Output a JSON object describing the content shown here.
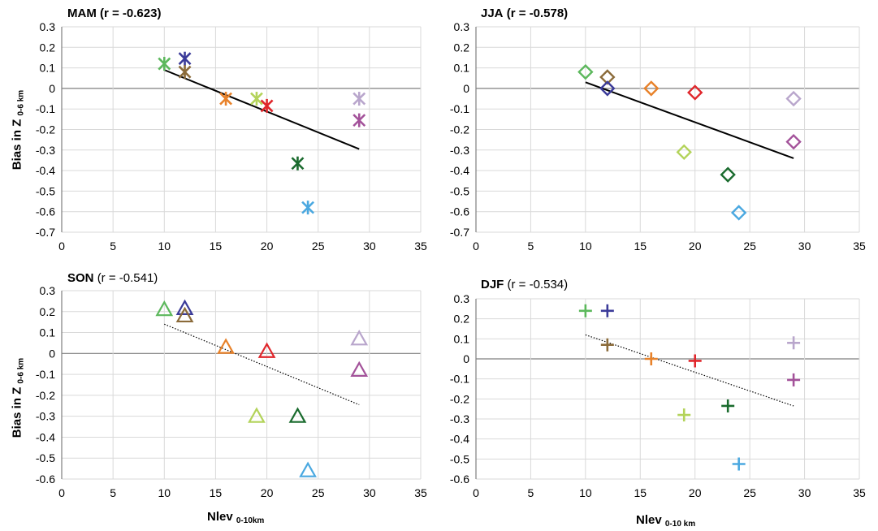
{
  "figure": {
    "ylabel": {
      "main": "Bias in Z",
      "sub": "0-6 km"
    },
    "xlabel": {
      "main": "Nlev",
      "sub": "0-10 km"
    },
    "xlabel_left": {
      "main": "Nlev",
      "sub": "0-10km"
    }
  },
  "chart_data": [
    {
      "type": "scatter",
      "title": "MAM",
      "title_suffix": "(r = -0.623)",
      "title_suffix_bold": true,
      "marker": "asterisk",
      "trendline": {
        "style": "solid",
        "x": [
          10,
          29
        ],
        "y": [
          0.09,
          -0.295
        ]
      },
      "xlim": [
        0,
        35
      ],
      "ylim": [
        -0.7,
        0.3
      ],
      "xticks": [
        "0",
        "5",
        "10",
        "15",
        "20",
        "25",
        "30",
        "35"
      ],
      "yticks": [
        "0.3",
        "0.2",
        "0.1",
        "0",
        "-0.1",
        "-0.2",
        "-0.3",
        "-0.4",
        "-0.5",
        "-0.6",
        "-0.7"
      ],
      "points": [
        {
          "x": 10,
          "y": 0.12,
          "color": "#5cb85c"
        },
        {
          "x": 12,
          "y": 0.145,
          "color": "#3b3b99"
        },
        {
          "x": 12,
          "y": 0.08,
          "color": "#8b6b3a"
        },
        {
          "x": 16,
          "y": -0.05,
          "color": "#e8822a"
        },
        {
          "x": 19,
          "y": -0.05,
          "color": "#b3d35a"
        },
        {
          "x": 20,
          "y": -0.085,
          "color": "#e0262b"
        },
        {
          "x": 23,
          "y": -0.365,
          "color": "#1a6b2e"
        },
        {
          "x": 24,
          "y": -0.58,
          "color": "#4aa8e0"
        },
        {
          "x": 29,
          "y": -0.05,
          "color": "#b9a6cc"
        },
        {
          "x": 29,
          "y": -0.155,
          "color": "#a3529a"
        }
      ]
    },
    {
      "type": "scatter",
      "title": "JJA",
      "title_suffix": "(r = -0.578)",
      "title_suffix_bold": true,
      "marker": "diamond",
      "trendline": {
        "style": "solid",
        "x": [
          10,
          29
        ],
        "y": [
          0.03,
          -0.34
        ]
      },
      "xlim": [
        0,
        35
      ],
      "ylim": [
        -0.7,
        0.3
      ],
      "xticks": [
        "0",
        "5",
        "10",
        "15",
        "20",
        "25",
        "30",
        "35"
      ],
      "yticks": [
        "0.3",
        "0.2",
        "0.1",
        "0",
        "-0.1",
        "-0.2",
        "-0.3",
        "-0.4",
        "-0.5",
        "-0.6",
        "-0.7"
      ],
      "points": [
        {
          "x": 10,
          "y": 0.08,
          "color": "#5cb85c"
        },
        {
          "x": 12,
          "y": 0.055,
          "color": "#8b6b3a"
        },
        {
          "x": 12,
          "y": 0.0,
          "color": "#3b3b99"
        },
        {
          "x": 16,
          "y": 0.0,
          "color": "#e8822a"
        },
        {
          "x": 20,
          "y": -0.02,
          "color": "#e0262b"
        },
        {
          "x": 19,
          "y": -0.31,
          "color": "#b3d35a"
        },
        {
          "x": 23,
          "y": -0.42,
          "color": "#1a6b2e"
        },
        {
          "x": 24,
          "y": -0.605,
          "color": "#4aa8e0"
        },
        {
          "x": 29,
          "y": -0.05,
          "color": "#b9a6cc"
        },
        {
          "x": 29,
          "y": -0.26,
          "color": "#a3529a"
        }
      ]
    },
    {
      "type": "scatter",
      "title": "SON",
      "title_suffix": "(r = -0.541)",
      "title_suffix_bold": false,
      "marker": "triangle",
      "trendline": {
        "style": "dotted",
        "x": [
          10,
          29
        ],
        "y": [
          0.14,
          -0.245
        ]
      },
      "xlim": [
        0,
        35
      ],
      "ylim": [
        -0.6,
        0.3
      ],
      "xticks": [
        "0",
        "5",
        "10",
        "15",
        "20",
        "25",
        "30",
        "35"
      ],
      "yticks": [
        "0.3",
        "0.2",
        "0.1",
        "0",
        "-0.1",
        "-0.2",
        "-0.3",
        "-0.4",
        "-0.5",
        "-0.6"
      ],
      "points": [
        {
          "x": 10,
          "y": 0.21,
          "color": "#5cb85c"
        },
        {
          "x": 12,
          "y": 0.215,
          "color": "#3b3b99"
        },
        {
          "x": 12,
          "y": 0.18,
          "color": "#8b6b3a"
        },
        {
          "x": 16,
          "y": 0.03,
          "color": "#e8822a"
        },
        {
          "x": 20,
          "y": 0.01,
          "color": "#e0262b"
        },
        {
          "x": 19,
          "y": -0.3,
          "color": "#b3d35a"
        },
        {
          "x": 23,
          "y": -0.3,
          "color": "#1a6b2e"
        },
        {
          "x": 24,
          "y": -0.56,
          "color": "#4aa8e0"
        },
        {
          "x": 29,
          "y": 0.07,
          "color": "#b9a6cc"
        },
        {
          "x": 29,
          "y": -0.08,
          "color": "#a3529a"
        }
      ]
    },
    {
      "type": "scatter",
      "title": "DJF",
      "title_suffix": "(r = -0.534)",
      "title_suffix_bold": false,
      "marker": "plus",
      "trendline": {
        "style": "dotted",
        "x": [
          10,
          29
        ],
        "y": [
          0.12,
          -0.235
        ]
      },
      "xlim": [
        0,
        35
      ],
      "ylim": [
        -0.6,
        0.3
      ],
      "xticks": [
        "0",
        "5",
        "10",
        "15",
        "20",
        "25",
        "30",
        "35"
      ],
      "yticks": [
        "0.3",
        "0.2",
        "0.1",
        "0",
        "-0.1",
        "-0.2",
        "-0.3",
        "-0.4",
        "-0.5",
        "-0.6"
      ],
      "points": [
        {
          "x": 10,
          "y": 0.24,
          "color": "#5cb85c"
        },
        {
          "x": 12,
          "y": 0.24,
          "color": "#3b3b99"
        },
        {
          "x": 12,
          "y": 0.07,
          "color": "#8b6b3a"
        },
        {
          "x": 16,
          "y": 0.0,
          "color": "#e8822a"
        },
        {
          "x": 20,
          "y": -0.01,
          "color": "#e0262b"
        },
        {
          "x": 19,
          "y": -0.28,
          "color": "#b3d35a"
        },
        {
          "x": 23,
          "y": -0.235,
          "color": "#1a6b2e"
        },
        {
          "x": 24,
          "y": -0.525,
          "color": "#4aa8e0"
        },
        {
          "x": 29,
          "y": 0.08,
          "color": "#b9a6cc"
        },
        {
          "x": 29,
          "y": -0.105,
          "color": "#a3529a"
        }
      ]
    }
  ]
}
